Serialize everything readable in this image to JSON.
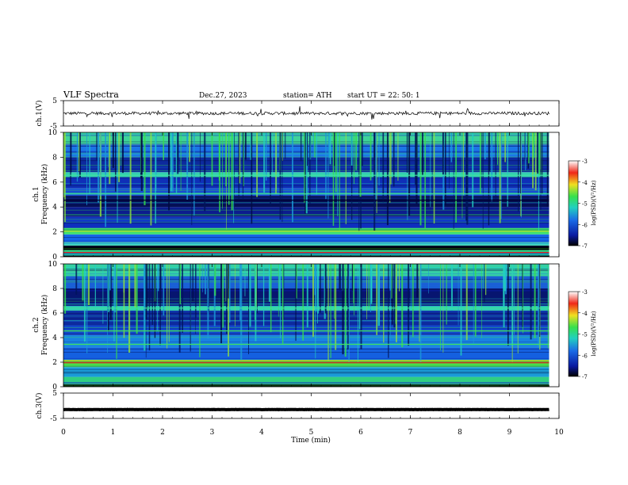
{
  "header": {
    "title": "VLF  Spectra",
    "date": "Dec.27, 2023",
    "station": "station= ATH",
    "start_ut": "start  UT  =   22: 50: 1"
  },
  "chart_data": [
    {
      "type": "line",
      "name": "ch1-waveform",
      "ylabel": "ch.1(V)",
      "ylim": [
        -5,
        5
      ],
      "yticks": [
        "5",
        "-5"
      ],
      "xlim": [
        0,
        10
      ],
      "x_extent_data": 9.8,
      "baseline_value": 0,
      "noise_amplitude": 0.6,
      "grid": false
    },
    {
      "type": "heatmap",
      "name": "ch1-spectrogram",
      "ylabel_lines": [
        "ch.1",
        "Frequency  (kHz)"
      ],
      "ylim": [
        0,
        10
      ],
      "yticks": [
        "0",
        "2",
        "4",
        "6",
        "8",
        "10"
      ],
      "xlim": [
        0,
        10
      ],
      "x_extent_data": 9.8,
      "bands_khz": [
        {
          "f0": 0.0,
          "f1": 0.1,
          "color": "#000000"
        },
        {
          "f0": 0.1,
          "f1": 0.3,
          "color": "#17bcd8"
        },
        {
          "f0": 0.3,
          "f1": 0.55,
          "color": "#22d07a"
        },
        {
          "f0": 0.55,
          "f1": 0.9,
          "color": "#000000"
        },
        {
          "f0": 0.9,
          "f1": 1.2,
          "color": "#3fd4c0"
        },
        {
          "f0": 1.2,
          "f1": 1.8,
          "color": "#1565e8"
        },
        {
          "f0": 1.8,
          "f1": 2.3,
          "color": "#3de070"
        },
        {
          "f0": 2.3,
          "f1": 3.2,
          "color": "#0f2fbf"
        },
        {
          "f0": 3.2,
          "f1": 4.0,
          "color": "#0b1c8e"
        },
        {
          "f0": 4.0,
          "f1": 4.9,
          "color": "#050f55"
        },
        {
          "f0": 4.9,
          "f1": 5.5,
          "color": "#1848d6"
        },
        {
          "f0": 5.5,
          "f1": 6.4,
          "color": "#0f2fb8"
        },
        {
          "f0": 6.4,
          "f1": 6.8,
          "color": "#34d0b0"
        },
        {
          "f0": 6.8,
          "f1": 8.0,
          "color": "#0d2a9e"
        },
        {
          "f0": 8.0,
          "f1": 9.0,
          "color": "#1c76e6"
        },
        {
          "f0": 9.0,
          "f1": 10.0,
          "color": "#3fd39a"
        }
      ],
      "lines_khz": [
        {
          "f": 0.35,
          "color": "#e01818"
        },
        {
          "f": 2.05,
          "color": "#c8e020"
        },
        {
          "f": 4.55,
          "color": "#000033"
        },
        {
          "f": 5.05,
          "color": "#40e0a0"
        },
        {
          "f": 6.55,
          "color": "#40e0a0"
        }
      ],
      "colorbar": {
        "label": "log(PSD)(V²/Hz)",
        "ticks": [
          "-3",
          "-4",
          "-5",
          "-6",
          "-7"
        ],
        "range": [
          -7,
          -3
        ]
      }
    },
    {
      "type": "heatmap",
      "name": "ch2-spectrogram",
      "ylabel_lines": [
        "ch.2",
        "Frequency  (kHz)"
      ],
      "ylim": [
        0,
        10
      ],
      "yticks": [
        "0",
        "2",
        "4",
        "6",
        "8",
        "10"
      ],
      "xlim": [
        0,
        10
      ],
      "x_extent_data": 9.8,
      "bands_khz": [
        {
          "f0": 0.0,
          "f1": 0.2,
          "color": "#000000"
        },
        {
          "f0": 0.2,
          "f1": 0.8,
          "color": "#2fcf82"
        },
        {
          "f0": 0.8,
          "f1": 1.6,
          "color": "#1a9cd8"
        },
        {
          "f0": 1.6,
          "f1": 2.2,
          "color": "#48e048"
        },
        {
          "f0": 2.2,
          "f1": 3.2,
          "color": "#1460e0"
        },
        {
          "f0": 3.2,
          "f1": 4.2,
          "color": "#1a86e0"
        },
        {
          "f0": 4.2,
          "f1": 5.0,
          "color": "#1248cc"
        },
        {
          "f0": 5.0,
          "f1": 6.2,
          "color": "#0d2a9e"
        },
        {
          "f0": 6.2,
          "f1": 6.6,
          "color": "#2fcfb0"
        },
        {
          "f0": 6.6,
          "f1": 8.0,
          "color": "#071570"
        },
        {
          "f0": 8.0,
          "f1": 9.0,
          "color": "#1a5ed4"
        },
        {
          "f0": 9.0,
          "f1": 10.0,
          "color": "#38cfa0"
        }
      ],
      "lines_khz": [
        {
          "f": 1.95,
          "color": "#e02020"
        },
        {
          "f": 2.1,
          "color": "#e0c020"
        },
        {
          "f": 3.45,
          "color": "#40e060"
        },
        {
          "f": 4.55,
          "color": "#40e060"
        },
        {
          "f": 6.4,
          "color": "#40e0a0"
        }
      ],
      "colorbar": {
        "label": "log(PSD)(V²/Hz)",
        "ticks": [
          "-3",
          "-4",
          "-5",
          "-6",
          "-7"
        ],
        "range": [
          -7,
          -3
        ]
      }
    },
    {
      "type": "line",
      "name": "ch3-waveform",
      "ylabel": "ch.3(V)",
      "ylim": [
        -5,
        5
      ],
      "yticks": [
        "5",
        "-5"
      ],
      "xlim": [
        0,
        10
      ],
      "x_extent_data": 9.8,
      "baseline_value": -1.5,
      "noise_amplitude": 0.05,
      "grid": false
    }
  ],
  "x_axis": {
    "label": "Time  (min)",
    "ticks": [
      "0",
      "1",
      "2",
      "3",
      "4",
      "5",
      "6",
      "7",
      "8",
      "9",
      "10"
    ]
  },
  "colors": {
    "colormap": [
      "#000000",
      "#0a1aa0",
      "#1a6ae6",
      "#22d0c0",
      "#36e04c",
      "#f0e020",
      "#f02818",
      "#ffffff"
    ]
  }
}
